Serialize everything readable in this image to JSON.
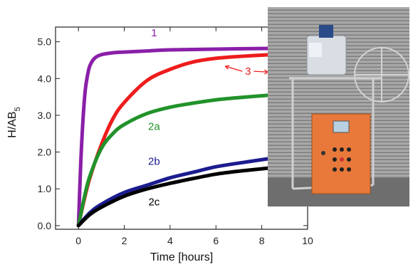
{
  "chart_data": {
    "type": "line",
    "title": "",
    "xlabel": "Time [hours]",
    "ylabel": "H/AB5",
    "ylabel_main": "H/AB",
    "ylabel_sub": "5",
    "xlim": [
      -1,
      10
    ],
    "ylim": [
      -0.1,
      5.4
    ],
    "xticks": [
      0,
      2,
      4,
      6,
      8,
      10
    ],
    "yticks": [
      0.0,
      1.0,
      2.0,
      3.0,
      4.0,
      5.0
    ],
    "xtick_labels": [
      "0",
      "2",
      "4",
      "6",
      "8",
      "10"
    ],
    "ytick_labels": [
      "0.0",
      "1.0",
      "2.0",
      "3.0",
      "4.0",
      "5.0"
    ],
    "grid": false,
    "series": [
      {
        "name": "1",
        "color": "#8a1fa8",
        "x": [
          0,
          0.1,
          0.2,
          0.3,
          0.4,
          0.5,
          0.7,
          1.0,
          1.5,
          2.0,
          3.0,
          4.0,
          6.0,
          8.4
        ],
        "y": [
          0.0,
          1.7,
          2.9,
          3.7,
          4.1,
          4.35,
          4.55,
          4.65,
          4.7,
          4.72,
          4.75,
          4.78,
          4.8,
          4.82
        ]
      },
      {
        "name": "3",
        "color": "#ee1c1c",
        "x": [
          0,
          0.25,
          0.5,
          1.0,
          1.5,
          2.0,
          3.0,
          4.0,
          5.0,
          6.0,
          7.0,
          8.4
        ],
        "y": [
          0.0,
          0.7,
          1.3,
          2.2,
          2.9,
          3.35,
          3.95,
          4.25,
          4.45,
          4.55,
          4.6,
          4.65
        ]
      },
      {
        "name": "2a",
        "color": "#21922a",
        "x": [
          0,
          0.25,
          0.5,
          1.0,
          1.5,
          2.0,
          3.0,
          4.0,
          5.0,
          6.0,
          7.0,
          8.4
        ],
        "y": [
          0.0,
          0.75,
          1.35,
          2.1,
          2.5,
          2.75,
          3.05,
          3.22,
          3.33,
          3.42,
          3.48,
          3.55
        ]
      },
      {
        "name": "2b",
        "color": "#1c1c8f",
        "x": [
          0,
          0.5,
          1.0,
          2.0,
          3.0,
          4.0,
          5.0,
          6.0,
          7.0,
          8.4
        ],
        "y": [
          0.0,
          0.35,
          0.58,
          0.9,
          1.1,
          1.3,
          1.45,
          1.6,
          1.7,
          1.83
        ]
      },
      {
        "name": "2c",
        "color": "#000000",
        "x": [
          0,
          0.5,
          1.0,
          2.0,
          3.0,
          4.0,
          5.0,
          6.0,
          7.0,
          8.4
        ],
        "y": [
          0.0,
          0.3,
          0.5,
          0.8,
          1.0,
          1.15,
          1.28,
          1.4,
          1.48,
          1.57
        ]
      }
    ],
    "annotations": [
      {
        "text": "1",
        "x": 3.3,
        "y": 5.15,
        "color": "#8a1fa8"
      },
      {
        "text": "3",
        "x": 7.4,
        "y": 4.1,
        "color": "#ee1c1c",
        "arrows": true
      },
      {
        "text": "2a",
        "x": 3.3,
        "y": 2.6,
        "color": "#21922a"
      },
      {
        "text": "2b",
        "x": 3.3,
        "y": 1.65,
        "color": "#1c1c8f"
      },
      {
        "text": "2c",
        "x": 3.3,
        "y": 0.55,
        "color": "#000000"
      }
    ]
  },
  "photo": {
    "description_icon": "hydrogen-storage-apparatus-photo-icon",
    "background": "#9a9a9a",
    "cabinet_color": "#e8793a"
  }
}
